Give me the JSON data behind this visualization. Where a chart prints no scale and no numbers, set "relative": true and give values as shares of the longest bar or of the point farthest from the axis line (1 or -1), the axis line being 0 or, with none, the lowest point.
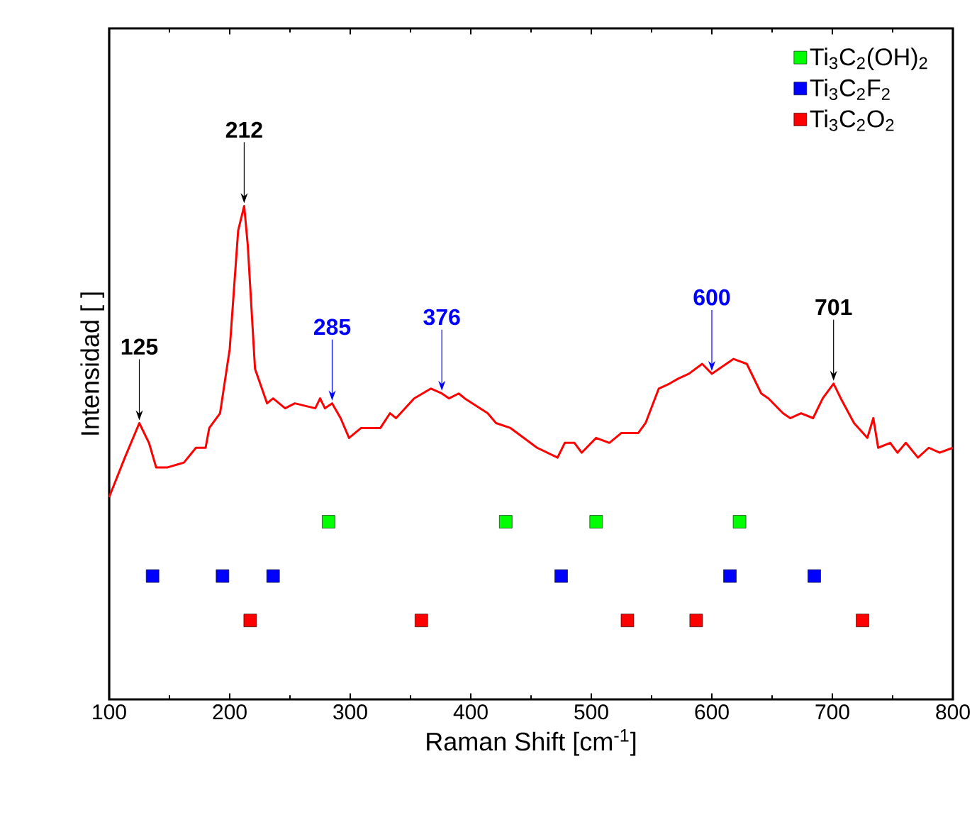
{
  "chart_data": {
    "type": "line",
    "relative": true,
    "xlabel": "Raman Shift [cm$^{-1}$]",
    "ylabel": "Intensidad [ ]",
    "xlim": [
      100,
      800
    ],
    "xticks": [
      100,
      200,
      300,
      400,
      500,
      600,
      700,
      800
    ],
    "legend": "top right",
    "grid": false,
    "series": [
      {
        "color": "#ff0000",
        "marker": "none",
        "line_style": "solid",
        "x": [
          100,
          113,
          125,
          133,
          139,
          148,
          162,
          172,
          180,
          183,
          192,
          200,
          207,
          212,
          215,
          221,
          231,
          236,
          246,
          254,
          271,
          275,
          279,
          285,
          292,
          299,
          309,
          321,
          325,
          333,
          338,
          353,
          367,
          376,
          382,
          390,
          395,
          414,
          421,
          433,
          455,
          472,
          478,
          486,
          492,
          504,
          515,
          525,
          539,
          545,
          556,
          565,
          572,
          581,
          592,
          600,
          612,
          618,
          629,
          641,
          647,
          659,
          665,
          674,
          684,
          692,
          701,
          707,
          718,
          729,
          734,
          738,
          748,
          754,
          761,
          771,
          780,
          789,
          800
        ],
        "values": [
          0.41,
          0.49,
          0.56,
          0.52,
          0.47,
          0.47,
          0.48,
          0.51,
          0.51,
          0.55,
          0.58,
          0.71,
          0.95,
          1.0,
          0.92,
          0.67,
          0.6,
          0.61,
          0.59,
          0.6,
          0.59,
          0.61,
          0.59,
          0.6,
          0.57,
          0.53,
          0.55,
          0.55,
          0.55,
          0.58,
          0.57,
          0.61,
          0.63,
          0.62,
          0.61,
          0.62,
          0.61,
          0.58,
          0.56,
          0.55,
          0.51,
          0.49,
          0.52,
          0.52,
          0.5,
          0.53,
          0.52,
          0.54,
          0.54,
          0.56,
          0.63,
          0.64,
          0.65,
          0.66,
          0.68,
          0.66,
          0.68,
          0.69,
          0.68,
          0.62,
          0.61,
          0.58,
          0.57,
          0.58,
          0.57,
          0.61,
          0.64,
          0.61,
          0.56,
          0.53,
          0.57,
          0.51,
          0.52,
          0.5,
          0.52,
          0.49,
          0.51,
          0.5,
          0.51
        ]
      },
      {
        "type": "scatter",
        "name": "Ti$_{3}$C$_{2}$(OH)$_{2}$",
        "color": "#00ff00",
        "marker": "square",
        "x": [
          282,
          429,
          504,
          623
        ],
        "values": [
          0.36,
          0.36,
          0.36,
          0.36
        ]
      },
      {
        "type": "scatter",
        "name": "Ti$_{3}$C$_{2}$F$_{2}$",
        "color": "#0000ff",
        "marker": "square",
        "x": [
          136,
          194,
          236,
          475,
          615,
          685
        ],
        "values": [
          0.25,
          0.25,
          0.25,
          0.25,
          0.25,
          0.25
        ]
      },
      {
        "type": "scatter",
        "name": "Ti$_{3}$C$_{2}$O$_{2}$",
        "color": "#ff0000",
        "marker": "square",
        "x": [
          217,
          359,
          530,
          587,
          725
        ],
        "values": [
          0.16,
          0.16,
          0.16,
          0.16,
          0.16
        ]
      }
    ],
    "annotations": [
      {
        "text": "125",
        "x": 125,
        "y": 0.56
      },
      {
        "text": "212",
        "x": 212,
        "y": 1.0
      },
      {
        "text": "285",
        "x": 285,
        "y": 0.6
      },
      {
        "text": "376",
        "x": 376,
        "y": 0.62
      },
      {
        "text": "600",
        "x": 600,
        "y": 0.66
      },
      {
        "text": "701",
        "x": 701,
        "y": 0.64
      }
    ]
  }
}
